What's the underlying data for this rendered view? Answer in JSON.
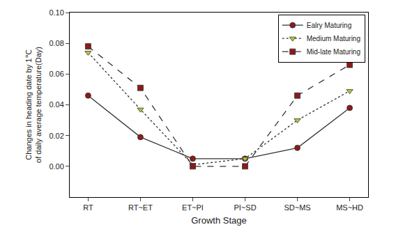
{
  "chart_data": {
    "type": "line",
    "x_label": "Growth Stage",
    "y_label": [
      "Changes in heading date by 1℃",
      "of daily average temperature(Day)"
    ],
    "categories": [
      "RT",
      "RT~ET",
      "ET~PI",
      "PI~SD",
      "SD~MS",
      "MS~HD"
    ],
    "series": [
      {
        "name": "Ealry Maturing",
        "color": "#8b1a1a",
        "marker": "circle",
        "line_style": "solid",
        "values": [
          0.046,
          0.019,
          0.005,
          0.005,
          0.012,
          0.038
        ]
      },
      {
        "name": "Medium Maturing",
        "color": "#b8c830",
        "marker": "triangle-down",
        "line_style": "dot",
        "values": [
          0.074,
          0.037,
          0.001,
          0.005,
          0.03,
          0.049
        ]
      },
      {
        "name": "Mid-late Maturing",
        "color": "#8b1a1a",
        "marker": "square",
        "line_style": "dash",
        "values": [
          0.078,
          0.051,
          0.0,
          0.0,
          0.046,
          0.066
        ]
      }
    ],
    "ylim": [
      -0.02,
      0.1
    ],
    "yticks": [
      {
        "value": 0,
        "label": "0.00"
      },
      {
        "value": 0.02,
        "label": "0.02"
      },
      {
        "value": 0.04,
        "label": "0.04"
      },
      {
        "value": 0.06,
        "label": "0.06"
      },
      {
        "value": 0.08,
        "label": "0.08"
      },
      {
        "value": 0.1,
        "label": "0.10"
      }
    ],
    "grid": false,
    "legend": "upper right"
  }
}
